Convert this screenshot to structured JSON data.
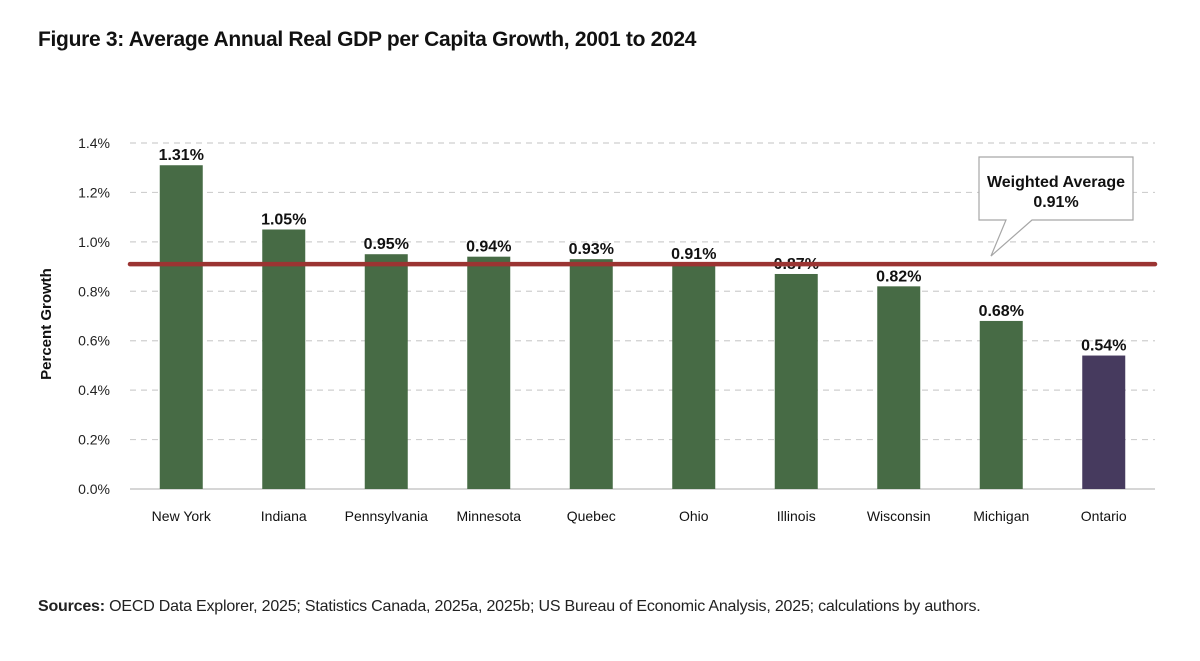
{
  "title": "Figure 3: Average Annual Real GDP per Capita Growth, 2001 to 2024",
  "sources": {
    "label": "Sources:",
    "text": " OECD Data Explorer, 2025; Statistics Canada, 2025a, 2025b; US Bureau of Economic Analysis, 2025; calculations by authors."
  },
  "chart_data": {
    "type": "bar",
    "categories": [
      "New York",
      "Indiana",
      "Pennsylvania",
      "Minnesota",
      "Quebec",
      "Ohio",
      "Illinois",
      "Wisconsin",
      "Michigan",
      "Ontario"
    ],
    "values": [
      1.31,
      1.05,
      0.95,
      0.94,
      0.93,
      0.91,
      0.87,
      0.82,
      0.68,
      0.54
    ],
    "data_labels": [
      "1.31%",
      "1.05%",
      "0.95%",
      "0.94%",
      "0.93%",
      "0.91%",
      "0.87%",
      "0.82%",
      "0.68%",
      "0.54%"
    ],
    "ylabel": "Percent Growth",
    "xlabel": "",
    "ylim": [
      0,
      1.4
    ],
    "yticks": [
      0,
      0.2,
      0.4,
      0.6,
      0.8,
      1.0,
      1.2,
      1.4
    ],
    "ytick_labels": [
      "0.0%",
      "0.2%",
      "0.4%",
      "0.6%",
      "0.8%",
      "1.0%",
      "1.2%",
      "1.4%"
    ],
    "grid": true,
    "bar_color": "#476b45",
    "highlight_category": "Ontario",
    "highlight_color": "#463a5e",
    "reference_line": {
      "value": 0.91,
      "color": "#9b3432",
      "label": "Weighted Average",
      "value_label": "0.91%"
    }
  }
}
